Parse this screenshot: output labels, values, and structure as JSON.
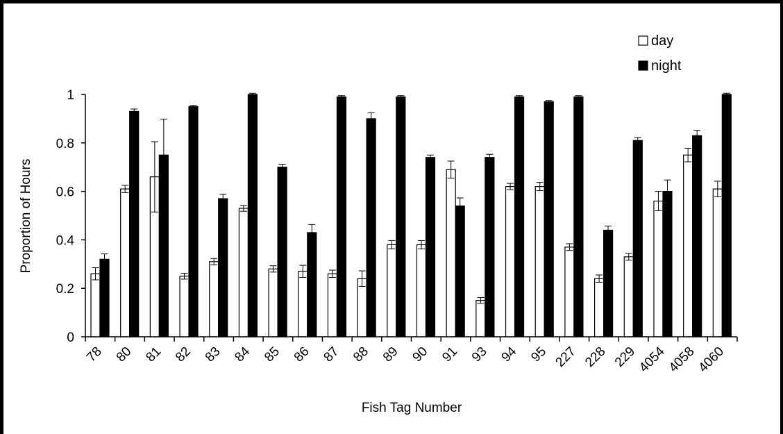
{
  "chart_data": {
    "type": "bar",
    "xlabel": "Fish Tag Number",
    "ylabel": "Proportion of Hours",
    "ylim": [
      0,
      1
    ],
    "yticks": [
      0,
      0.2,
      0.4,
      0.6,
      0.8,
      1
    ],
    "ytick_labels": [
      "0",
      "0.2",
      "0.4",
      "0.6",
      "0.8",
      "1"
    ],
    "grid": false,
    "legend_position": "top-right",
    "categories": [
      "78",
      "80",
      "81",
      "82",
      "83",
      "84",
      "85",
      "86",
      "87",
      "88",
      "89",
      "90",
      "91",
      "93",
      "94",
      "95",
      "227",
      "228",
      "229",
      "4054",
      "4058",
      "4060"
    ],
    "series": [
      {
        "name": "day",
        "color": "#ffffff",
        "values": [
          0.26,
          0.61,
          0.66,
          0.25,
          0.31,
          0.53,
          0.28,
          0.27,
          0.26,
          0.24,
          0.38,
          0.38,
          0.69,
          0.15,
          0.62,
          0.62,
          0.37,
          0.24,
          0.33,
          0.56,
          0.75,
          0.61
        ],
        "errors": [
          0.025,
          0.015,
          0.145,
          0.012,
          0.013,
          0.012,
          0.013,
          0.025,
          0.015,
          0.032,
          0.017,
          0.017,
          0.035,
          0.012,
          0.013,
          0.017,
          0.014,
          0.015,
          0.014,
          0.04,
          0.028,
          0.032
        ]
      },
      {
        "name": "night",
        "color": "#000000",
        "values": [
          0.32,
          0.93,
          0.75,
          0.95,
          0.57,
          1.0,
          0.7,
          0.43,
          0.99,
          0.9,
          0.99,
          0.74,
          0.54,
          0.74,
          0.99,
          0.97,
          0.99,
          0.44,
          0.81,
          0.6,
          0.83,
          1.0
        ],
        "errors": [
          0.022,
          0.01,
          0.148,
          0.005,
          0.018,
          0.005,
          0.012,
          0.033,
          0.005,
          0.024,
          0.005,
          0.01,
          0.033,
          0.013,
          0.005,
          0.005,
          0.005,
          0.017,
          0.012,
          0.047,
          0.022,
          0.005
        ]
      }
    ]
  }
}
